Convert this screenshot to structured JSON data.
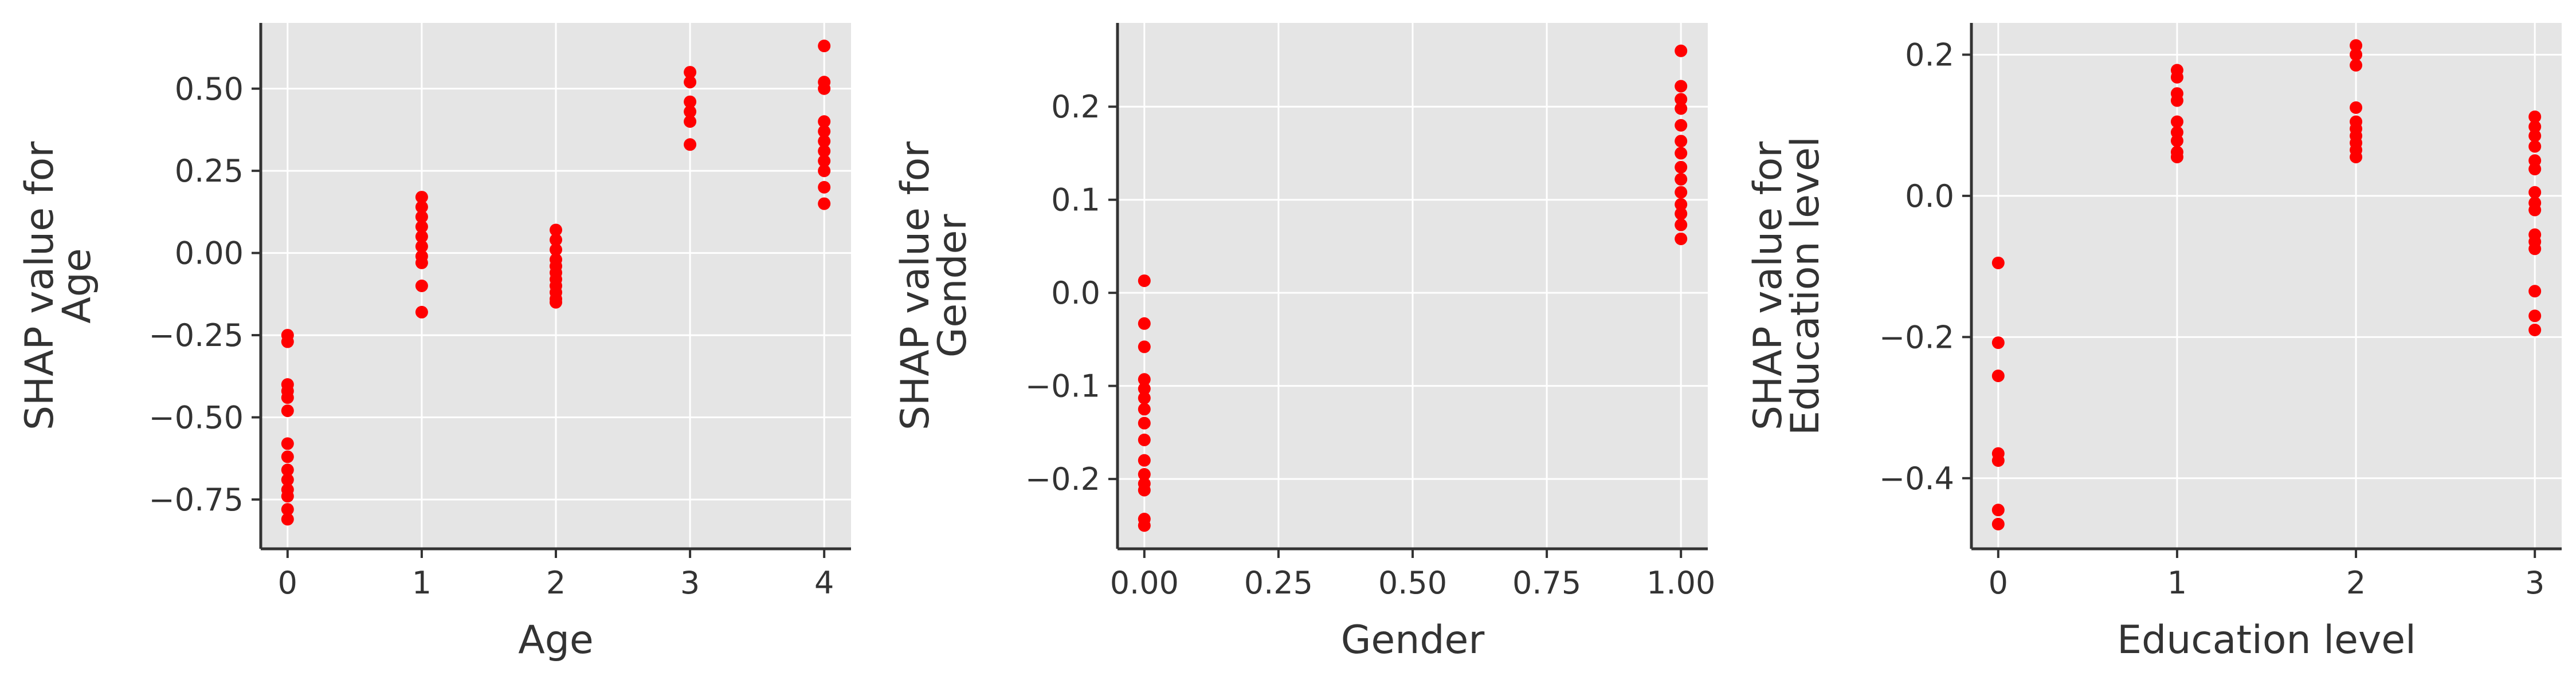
{
  "colors": {
    "point": "#ff0000",
    "plot_background": "#e5e5e5",
    "grid": "#ffffff",
    "axis": "#333333",
    "text": "#333333"
  },
  "chart_data": [
    {
      "type": "scatter",
      "xlabel": "Age",
      "ylabel": [
        "SHAP value for",
        "Age"
      ],
      "xlim": [
        -0.2,
        4.2
      ],
      "ylim": [
        -0.9,
        0.7
      ],
      "xticks": [
        0,
        1,
        2,
        3,
        4
      ],
      "xtick_labels": [
        "0",
        "1",
        "2",
        "3",
        "4"
      ],
      "yticks": [
        -0.75,
        -0.5,
        -0.25,
        0.0,
        0.25,
        0.5
      ],
      "ytick_labels": [
        "−0.75",
        "−0.50",
        "−0.25",
        "0.00",
        "0.25",
        "0.50"
      ],
      "grid": true,
      "points": [
        [
          0,
          -0.25
        ],
        [
          0,
          -0.27
        ],
        [
          0,
          -0.4
        ],
        [
          0,
          -0.42
        ],
        [
          0,
          -0.44
        ],
        [
          0,
          -0.48
        ],
        [
          0,
          -0.58
        ],
        [
          0,
          -0.62
        ],
        [
          0,
          -0.66
        ],
        [
          0,
          -0.69
        ],
        [
          0,
          -0.72
        ],
        [
          0,
          -0.74
        ],
        [
          0,
          -0.78
        ],
        [
          0,
          -0.81
        ],
        [
          1,
          0.17
        ],
        [
          1,
          0.14
        ],
        [
          1,
          0.11
        ],
        [
          1,
          0.08
        ],
        [
          1,
          0.05
        ],
        [
          1,
          0.02
        ],
        [
          1,
          -0.01
        ],
        [
          1,
          -0.03
        ],
        [
          1,
          -0.1
        ],
        [
          1,
          -0.18
        ],
        [
          2,
          0.07
        ],
        [
          2,
          0.04
        ],
        [
          2,
          0.01
        ],
        [
          2,
          -0.02
        ],
        [
          2,
          -0.04
        ],
        [
          2,
          -0.06
        ],
        [
          2,
          -0.08
        ],
        [
          2,
          -0.1
        ],
        [
          2,
          -0.12
        ],
        [
          2,
          -0.14
        ],
        [
          2,
          -0.15
        ],
        [
          3,
          0.55
        ],
        [
          3,
          0.52
        ],
        [
          3,
          0.46
        ],
        [
          3,
          0.43
        ],
        [
          3,
          0.4
        ],
        [
          3,
          0.33
        ],
        [
          4,
          0.63
        ],
        [
          4,
          0.52
        ],
        [
          4,
          0.5
        ],
        [
          4,
          0.4
        ],
        [
          4,
          0.37
        ],
        [
          4,
          0.34
        ],
        [
          4,
          0.31
        ],
        [
          4,
          0.28
        ],
        [
          4,
          0.25
        ],
        [
          4,
          0.2
        ],
        [
          4,
          0.15
        ]
      ]
    },
    {
      "type": "scatter",
      "xlabel": "Gender",
      "ylabel": [
        "SHAP value for",
        "Gender"
      ],
      "xlim": [
        -0.05,
        1.05
      ],
      "ylim": [
        -0.275,
        0.29
      ],
      "xticks": [
        0,
        0.25,
        0.5,
        0.75,
        1.0
      ],
      "xtick_labels": [
        "0.00",
        "0.25",
        "0.50",
        "0.75",
        "1.00"
      ],
      "yticks": [
        -0.2,
        -0.1,
        0.0,
        0.1,
        0.2
      ],
      "ytick_labels": [
        "−0.2",
        "−0.1",
        "0.0",
        "0.1",
        "0.2"
      ],
      "grid": true,
      "points": [
        [
          0,
          0.013
        ],
        [
          0,
          -0.033
        ],
        [
          0,
          -0.058
        ],
        [
          0,
          -0.093
        ],
        [
          0,
          -0.103
        ],
        [
          0,
          -0.113
        ],
        [
          0,
          -0.125
        ],
        [
          0,
          -0.14
        ],
        [
          0,
          -0.158
        ],
        [
          0,
          -0.18
        ],
        [
          0,
          -0.195
        ],
        [
          0,
          -0.205
        ],
        [
          0,
          -0.212
        ],
        [
          0,
          -0.243
        ],
        [
          0,
          -0.25
        ],
        [
          1,
          0.26
        ],
        [
          1,
          0.222
        ],
        [
          1,
          0.208
        ],
        [
          1,
          0.198
        ],
        [
          1,
          0.18
        ],
        [
          1,
          0.163
        ],
        [
          1,
          0.15
        ],
        [
          1,
          0.135
        ],
        [
          1,
          0.122
        ],
        [
          1,
          0.108
        ],
        [
          1,
          0.095
        ],
        [
          1,
          0.085
        ],
        [
          1,
          0.073
        ],
        [
          1,
          0.058
        ]
      ]
    },
    {
      "type": "scatter",
      "xlabel": "Education level",
      "ylabel": [
        "SHAP value for",
        "Education level"
      ],
      "xlim": [
        -0.15,
        3.15
      ],
      "ylim": [
        -0.5,
        0.245
      ],
      "xticks": [
        0,
        1,
        2,
        3
      ],
      "xtick_labels": [
        "0",
        "1",
        "2",
        "3"
      ],
      "yticks": [
        -0.4,
        -0.2,
        0.0,
        0.2
      ],
      "ytick_labels": [
        "−0.4",
        "−0.2",
        "0.0",
        "0.2"
      ],
      "grid": true,
      "points": [
        [
          0,
          -0.095
        ],
        [
          0,
          -0.208
        ],
        [
          0,
          -0.255
        ],
        [
          0,
          -0.365
        ],
        [
          0,
          -0.375
        ],
        [
          0,
          -0.445
        ],
        [
          0,
          -0.465
        ],
        [
          1,
          0.178
        ],
        [
          1,
          0.168
        ],
        [
          1,
          0.145
        ],
        [
          1,
          0.135
        ],
        [
          1,
          0.105
        ],
        [
          1,
          0.09
        ],
        [
          1,
          0.078
        ],
        [
          1,
          0.062
        ],
        [
          1,
          0.055
        ],
        [
          2,
          0.213
        ],
        [
          2,
          0.2
        ],
        [
          2,
          0.185
        ],
        [
          2,
          0.125
        ],
        [
          2,
          0.105
        ],
        [
          2,
          0.095
        ],
        [
          2,
          0.085
        ],
        [
          2,
          0.075
        ],
        [
          2,
          0.065
        ],
        [
          2,
          0.055
        ],
        [
          3,
          0.112
        ],
        [
          3,
          0.098
        ],
        [
          3,
          0.085
        ],
        [
          3,
          0.07
        ],
        [
          3,
          0.05
        ],
        [
          3,
          0.038
        ],
        [
          3,
          0.005
        ],
        [
          3,
          -0.01
        ],
        [
          3,
          -0.02
        ],
        [
          3,
          -0.055
        ],
        [
          3,
          -0.065
        ],
        [
          3,
          -0.075
        ],
        [
          3,
          -0.135
        ],
        [
          3,
          -0.17
        ],
        [
          3,
          -0.19
        ]
      ]
    }
  ]
}
